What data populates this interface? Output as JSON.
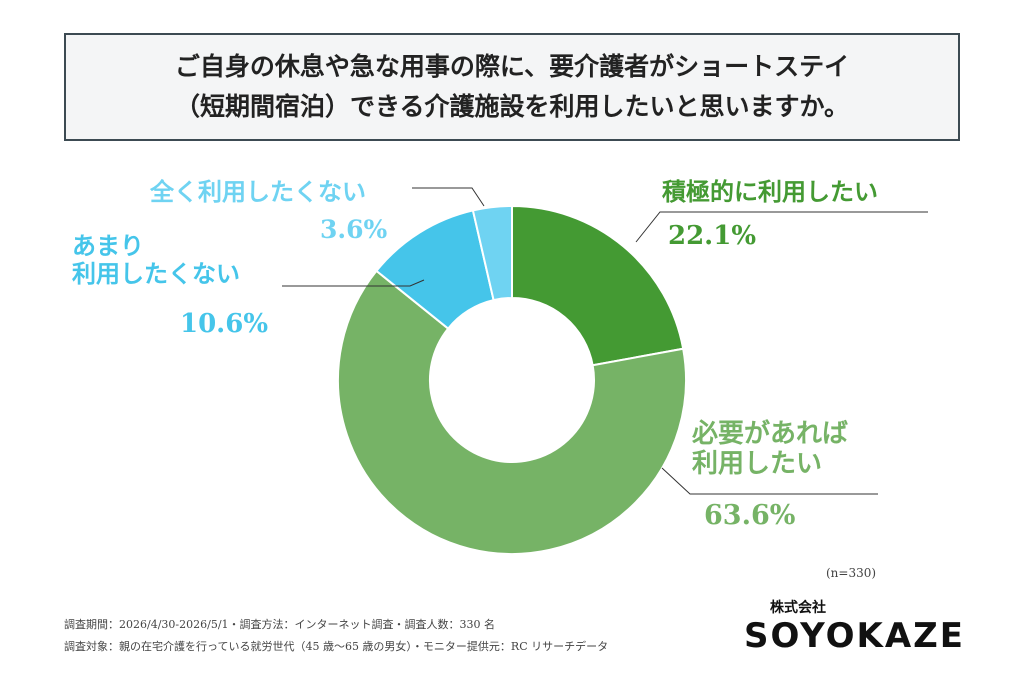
{
  "title_lines": [
    "ご自身の休息や急な用事の際に、要介護者がショートステイ",
    "（短期間宿泊）できる介護施設を利用したいと思いますか。"
  ],
  "chart_data": {
    "type": "pie",
    "hole": true,
    "slices": [
      {
        "label_lines": [
          "積極的に利用したい"
        ],
        "value": 22.1,
        "value_label": "22.1%",
        "color": "#449a33"
      },
      {
        "label_lines": [
          "必要があれば",
          "利用したい"
        ],
        "value": 63.6,
        "value_label": "63.6%",
        "color": "#76b366"
      },
      {
        "label_lines": [
          "あまり",
          "利用したくない"
        ],
        "value": 10.6,
        "value_label": "10.6%",
        "color": "#45c5ea"
      },
      {
        "label_lines": [
          "全く利用したくない"
        ],
        "value": 3.6,
        "value_label": "3.6%",
        "color": "#6fd3f2"
      }
    ]
  },
  "sample_size": "(n=330)",
  "footnotes": [
    "調査期間：2026/4/30-2026/5/1・調査方法：インターネット調査・調査人数：330 名",
    "調査対象：親の在宅介護を行っている就労世代（45 歳〜65 歳の男女）・モニター提供元：RC リサーチデータ"
  ],
  "brand": {
    "company": "株式会社",
    "name": "SOYOKAZE"
  }
}
